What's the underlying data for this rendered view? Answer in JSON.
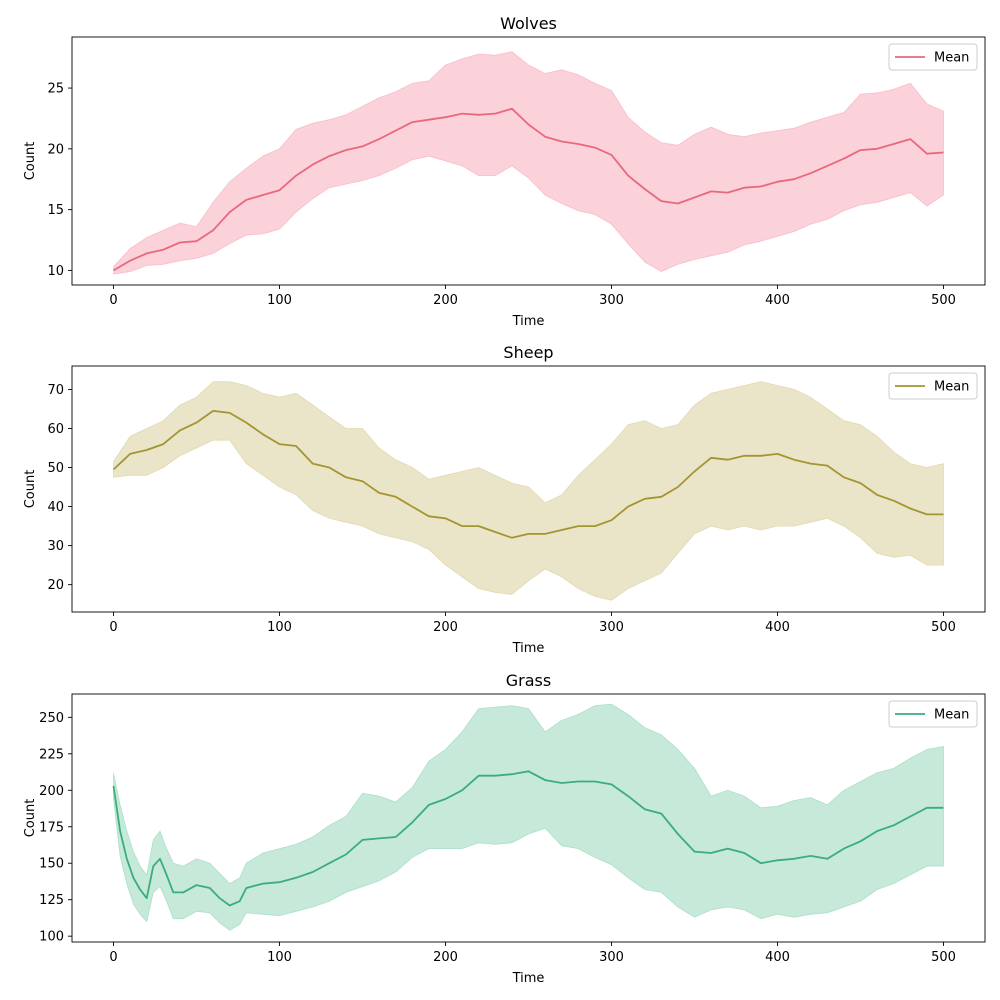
{
  "chart_data": [
    {
      "type": "area",
      "title": "Wolves",
      "xlabel": "Time",
      "ylabel": "Count",
      "xlim": [
        -25,
        525
      ],
      "ylim": [
        8.8,
        29.2
      ],
      "xticks": [
        0,
        100,
        200,
        300,
        400,
        500
      ],
      "yticks": [
        10,
        15,
        20,
        25
      ],
      "legend": "top-right",
      "grid": false,
      "color": "#e8697c",
      "band_color": "#f7a3b5",
      "series": [
        {
          "name": "Mean",
          "x": [
            0,
            10,
            20,
            30,
            40,
            50,
            60,
            70,
            80,
            90,
            100,
            110,
            120,
            130,
            140,
            150,
            160,
            170,
            180,
            190,
            200,
            210,
            220,
            230,
            240,
            250,
            260,
            270,
            280,
            290,
            300,
            310,
            320,
            330,
            340,
            350,
            360,
            370,
            380,
            390,
            400,
            410,
            420,
            430,
            440,
            450,
            460,
            470,
            480,
            490,
            500
          ],
          "mean": [
            10.0,
            10.8,
            11.4,
            11.7,
            12.3,
            12.4,
            13.3,
            14.8,
            15.8,
            16.2,
            16.6,
            17.8,
            18.7,
            19.4,
            19.9,
            20.2,
            20.8,
            21.5,
            22.2,
            22.4,
            22.6,
            22.9,
            22.8,
            22.9,
            23.3,
            22.0,
            21.0,
            20.6,
            20.4,
            20.1,
            19.5,
            17.8,
            16.7,
            15.7,
            15.5,
            16.0,
            16.5,
            16.4,
            16.8,
            16.9,
            17.3,
            17.5,
            18.0,
            18.6,
            19.2,
            19.9,
            20.0,
            20.4,
            20.8,
            19.6,
            19.7
          ],
          "upper": [
            10.3,
            11.8,
            12.7,
            13.3,
            13.9,
            13.6,
            15.6,
            17.3,
            18.4,
            19.4,
            20.0,
            21.6,
            22.1,
            22.4,
            22.8,
            23.5,
            24.2,
            24.7,
            25.4,
            25.6,
            26.9,
            27.4,
            27.8,
            27.7,
            28.0,
            26.9,
            26.2,
            26.5,
            26.1,
            25.4,
            24.8,
            22.6,
            21.4,
            20.5,
            20.3,
            21.2,
            21.8,
            21.2,
            21.0,
            21.3,
            21.5,
            21.7,
            22.2,
            22.6,
            23.0,
            24.5,
            24.6,
            24.9,
            25.4,
            23.7,
            23.1
          ],
          "lower": [
            9.7,
            9.9,
            10.4,
            10.5,
            10.8,
            11.0,
            11.4,
            12.2,
            12.9,
            13.0,
            13.4,
            14.8,
            15.9,
            16.8,
            17.1,
            17.4,
            17.8,
            18.4,
            19.1,
            19.4,
            19.0,
            18.6,
            17.8,
            17.8,
            18.6,
            17.6,
            16.2,
            15.5,
            14.9,
            14.6,
            13.8,
            12.2,
            10.7,
            9.9,
            10.5,
            10.9,
            11.2,
            11.5,
            12.1,
            12.4,
            12.8,
            13.2,
            13.8,
            14.2,
            14.9,
            15.4,
            15.6,
            16.0,
            16.4,
            15.3,
            16.2
          ]
        }
      ]
    },
    {
      "type": "area",
      "title": "Sheep",
      "xlabel": "Time",
      "ylabel": "Count",
      "xlim": [
        -25,
        525
      ],
      "ylim": [
        13,
        76
      ],
      "xticks": [
        0,
        100,
        200,
        300,
        400,
        500
      ],
      "yticks": [
        20,
        30,
        40,
        50,
        60,
        70
      ],
      "legend": "top-right",
      "grid": false,
      "color": "#a59432",
      "band_color": "#d6cc94",
      "series": [
        {
          "name": "Mean",
          "x": [
            0,
            10,
            20,
            30,
            40,
            50,
            60,
            70,
            80,
            90,
            100,
            110,
            120,
            130,
            140,
            150,
            160,
            170,
            180,
            190,
            200,
            210,
            220,
            230,
            240,
            250,
            260,
            270,
            280,
            290,
            300,
            310,
            320,
            330,
            340,
            350,
            360,
            370,
            380,
            390,
            400,
            410,
            420,
            430,
            440,
            450,
            460,
            470,
            480,
            490,
            500
          ],
          "mean": [
            49.5,
            53.5,
            54.5,
            56.0,
            59.5,
            61.5,
            64.5,
            64.0,
            61.5,
            58.5,
            56.0,
            55.5,
            51.0,
            50.0,
            47.5,
            46.5,
            43.5,
            42.5,
            40.0,
            37.5,
            37.0,
            35.0,
            35.0,
            33.5,
            32.0,
            33.0,
            33.0,
            34.0,
            35.0,
            35.0,
            36.5,
            40.0,
            42.0,
            42.5,
            45.0,
            49.0,
            52.5,
            52.0,
            53.0,
            53.0,
            53.5,
            52.0,
            51.0,
            50.5,
            47.5,
            46.0,
            43.0,
            41.5,
            39.5,
            38.0,
            38.0
          ],
          "upper": [
            51.5,
            58.0,
            60.0,
            62.0,
            66.0,
            68.0,
            72.0,
            72.0,
            71.0,
            69.0,
            68.0,
            69.0,
            66.0,
            63.0,
            60.0,
            60.0,
            55.0,
            52.0,
            50.0,
            47.0,
            48.0,
            49.0,
            50.0,
            48.0,
            46.0,
            45.0,
            41.0,
            43.0,
            48.0,
            52.0,
            56.0,
            61.0,
            62.0,
            60.0,
            61.0,
            66.0,
            69.0,
            70.0,
            71.0,
            72.0,
            71.0,
            70.0,
            68.0,
            65.0,
            62.0,
            61.0,
            58.0,
            54.0,
            51.0,
            50.0,
            51.0
          ],
          "lower": [
            47.5,
            48.0,
            48.0,
            50.0,
            53.0,
            55.0,
            57.0,
            57.0,
            51.0,
            48.0,
            45.0,
            43.0,
            39.0,
            37.0,
            36.0,
            35.0,
            33.0,
            32.0,
            31.0,
            29.0,
            25.0,
            22.0,
            19.0,
            18.0,
            17.5,
            21.0,
            24.0,
            22.0,
            19.0,
            17.0,
            16.0,
            19.0,
            21.0,
            23.0,
            28.0,
            33.0,
            35.0,
            34.0,
            35.0,
            34.0,
            35.0,
            35.0,
            36.0,
            37.0,
            35.0,
            32.0,
            28.0,
            27.0,
            27.5,
            25.0,
            25.0
          ]
        }
      ]
    },
    {
      "type": "area",
      "title": "Grass",
      "xlabel": "Time",
      "ylabel": "Count",
      "xlim": [
        -25,
        525
      ],
      "ylim": [
        96,
        266
      ],
      "xticks": [
        0,
        100,
        200,
        300,
        400,
        500
      ],
      "yticks": [
        100,
        125,
        150,
        175,
        200,
        225,
        250
      ],
      "legend": "top-right",
      "grid": false,
      "color": "#3aad7a",
      "band_color": "#8ed4b4",
      "series": [
        {
          "name": "Mean",
          "x": [
            0,
            4,
            8,
            12,
            16,
            20,
            24,
            28,
            32,
            36,
            42,
            50,
            58,
            64,
            70,
            76,
            80,
            90,
            100,
            110,
            120,
            130,
            140,
            150,
            160,
            170,
            180,
            190,
            200,
            210,
            220,
            230,
            240,
            250,
            260,
            270,
            280,
            290,
            300,
            310,
            320,
            330,
            340,
            350,
            360,
            370,
            380,
            390,
            400,
            410,
            420,
            430,
            440,
            450,
            460,
            470,
            480,
            490,
            500
          ],
          "mean": [
            203,
            172,
            153,
            140,
            132,
            126,
            148,
            153,
            142,
            130,
            130,
            135,
            133,
            126,
            121,
            124,
            133,
            136,
            137,
            140,
            144,
            150,
            156,
            166,
            167,
            168,
            178,
            190,
            194,
            200,
            210,
            210,
            211,
            213,
            207,
            205,
            206,
            206,
            204,
            196,
            187,
            184,
            170,
            158,
            157,
            160,
            157,
            150,
            152,
            153,
            155,
            153,
            160,
            165,
            172,
            176,
            182,
            188,
            188
          ],
          "upper": [
            212,
            190,
            172,
            158,
            148,
            142,
            166,
            172,
            160,
            150,
            148,
            153,
            150,
            143,
            136,
            140,
            150,
            157,
            160,
            163,
            168,
            176,
            182,
            198,
            196,
            192,
            202,
            220,
            228,
            240,
            256,
            257,
            258,
            256,
            240,
            248,
            252,
            258,
            259,
            252,
            243,
            238,
            228,
            215,
            196,
            200,
            196,
            188,
            189,
            193,
            195,
            190,
            200,
            206,
            212,
            215,
            222,
            228,
            230
          ],
          "lower": [
            194,
            155,
            136,
            122,
            115,
            110,
            130,
            134,
            124,
            112,
            112,
            117,
            116,
            109,
            104,
            108,
            116,
            115,
            114,
            117,
            120,
            124,
            130,
            134,
            138,
            144,
            154,
            160,
            160,
            160,
            164,
            163,
            164,
            170,
            174,
            162,
            160,
            154,
            149,
            140,
            132,
            130,
            120,
            113,
            118,
            120,
            118,
            112,
            115,
            113,
            115,
            116,
            120,
            124,
            132,
            136,
            142,
            148,
            148
          ]
        }
      ]
    }
  ]
}
